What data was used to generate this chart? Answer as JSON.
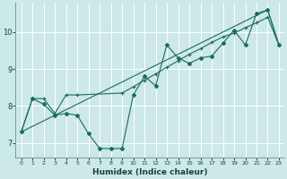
{
  "xlabel": "Humidex (Indice chaleur)",
  "bg_color": "#cce8e8",
  "line_color": "#1a6b60",
  "grid_color": "#ffffff",
  "xlim": [
    -0.5,
    23.5
  ],
  "ylim": [
    6.6,
    10.8
  ],
  "yticks": [
    7,
    8,
    9,
    10
  ],
  "xticks": [
    0,
    1,
    2,
    3,
    4,
    5,
    6,
    7,
    8,
    9,
    10,
    11,
    12,
    13,
    14,
    15,
    16,
    17,
    18,
    19,
    20,
    21,
    22,
    23
  ],
  "series1_x": [
    0,
    1,
    2,
    3,
    4,
    5,
    6,
    7,
    8,
    9,
    10,
    11,
    12,
    13,
    14,
    15,
    16,
    17,
    18,
    19,
    20,
    21,
    22,
    23
  ],
  "series1_y": [
    7.3,
    8.2,
    8.05,
    7.75,
    7.8,
    7.75,
    7.25,
    6.85,
    6.85,
    6.85,
    8.3,
    8.8,
    8.55,
    9.65,
    9.3,
    9.15,
    9.3,
    9.35,
    9.7,
    10.05,
    9.65,
    10.5,
    10.6,
    9.65
  ],
  "series2_x": [
    0,
    1,
    2,
    3,
    4,
    5,
    9,
    10,
    11,
    12,
    13,
    14,
    15,
    16,
    17,
    18,
    19,
    20,
    21,
    22,
    23
  ],
  "series2_y": [
    7.3,
    8.2,
    8.2,
    7.8,
    8.3,
    8.3,
    8.35,
    8.52,
    8.7,
    8.87,
    9.05,
    9.22,
    9.4,
    9.55,
    9.72,
    9.87,
    9.97,
    10.12,
    10.25,
    10.4,
    9.65
  ],
  "series3_x": [
    0,
    22,
    23
  ],
  "series3_y": [
    7.3,
    10.6,
    9.65
  ]
}
